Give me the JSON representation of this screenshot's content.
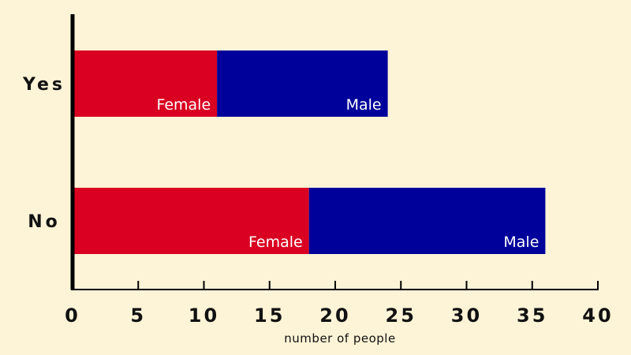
{
  "chart_data": {
    "type": "bar",
    "orientation": "horizontal",
    "stacked": true,
    "categories": [
      "Yes",
      "No"
    ],
    "series": [
      {
        "name": "Female",
        "values": [
          11,
          18
        ],
        "color": "#d90021"
      },
      {
        "name": "Male",
        "values": [
          13,
          18
        ],
        "color": "#00009b"
      }
    ],
    "xlabel": "number of people",
    "ylabel": "",
    "xlim": [
      0,
      40
    ],
    "xticks": [
      0,
      5,
      10,
      15,
      20,
      25,
      30,
      35,
      40
    ],
    "grid": false,
    "legend": "none",
    "background": "#fdf3d6"
  }
}
